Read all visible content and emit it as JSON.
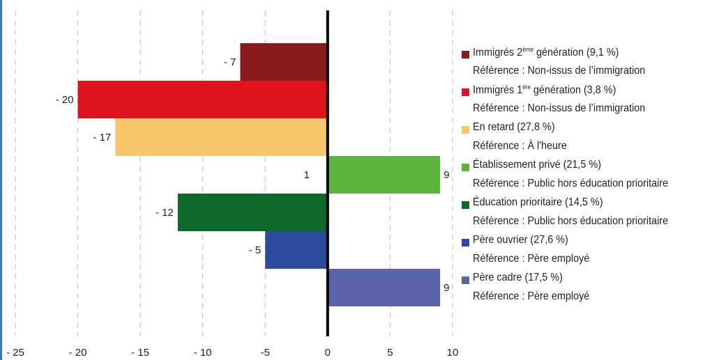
{
  "chart_data": {
    "type": "bar",
    "orientation": "horizontal",
    "xlim": [
      -25,
      10
    ],
    "xticks": [
      -25,
      -20,
      -15,
      -10,
      -5,
      0,
      5,
      10
    ],
    "xtick_labels": [
      "- 25",
      "- 20",
      "- 15",
      "- 10",
      "-5",
      "0",
      "5",
      "10"
    ],
    "grid": "vertical dashed",
    "legend_position": "right",
    "bars": [
      {
        "name": "Immigrés 2ème génération (9,1 %)",
        "value": -7,
        "label": "- 7",
        "color": "#8b1a1f"
      },
      {
        "name": "Immigrés 1ère génération (3,8 %)",
        "value": -20,
        "label": "- 20",
        "color": "#e0141e"
      },
      {
        "name": "En retard (27,8 %)",
        "value": -17,
        "label": "- 17",
        "color": "#f9c76b"
      },
      {
        "name": "Établissement privé (21,5 %)",
        "value": 9,
        "label": "9",
        "color": "#5cb33d"
      },
      {
        "name": "Éducation prioritaire (14,5 %)",
        "value": -12,
        "label": "- 12",
        "color": "#0d6a2c"
      },
      {
        "name": "Père ouvrier (27,6 %)",
        "value": -5,
        "label": "- 5",
        "color": "#2b4aa0"
      },
      {
        "name": "Père cadre (17,5 %)",
        "value": 9,
        "label": "9",
        "color": "#5b63ab"
      }
    ],
    "extra_annotations": [
      {
        "text": "1",
        "near_bar": 3
      }
    ]
  },
  "legend": [
    {
      "pre": "Immigrés 2",
      "sup": "ème",
      "post": " génération (9,1 %)",
      "ref": "Référence : Non-issus de l’immigration",
      "color": "#8b1a1f"
    },
    {
      "pre": "Immigrés 1",
      "sup": "ère",
      "post": " génération (3,8 %)",
      "ref": "Référence : Non-issus de l’immigration",
      "color": "#e0141e"
    },
    {
      "pre": "En retard (27,8 %)",
      "sup": "",
      "post": "",
      "ref": "Référence : À l'heure",
      "color": "#f9c76b"
    },
    {
      "pre": "Établissement privé (21,5 %)",
      "sup": "",
      "post": "",
      "ref": "Référence : Public hors éducation prioritaire",
      "color": "#5cb33d"
    },
    {
      "pre": "Éducation prioritaire (14,5 %)",
      "sup": "",
      "post": "",
      "ref": "Référence : Public hors éducation prioritaire",
      "color": "#0d6a2c"
    },
    {
      "pre": "Père ouvrier (27,6 %)",
      "sup": "",
      "post": "",
      "ref": "Référence : Père employé",
      "color": "#2b4aa0"
    },
    {
      "pre": "Père cadre (17,5 %)",
      "sup": "",
      "post": "",
      "ref": "Référence : Père employé",
      "color": "#5b63ab"
    }
  ]
}
